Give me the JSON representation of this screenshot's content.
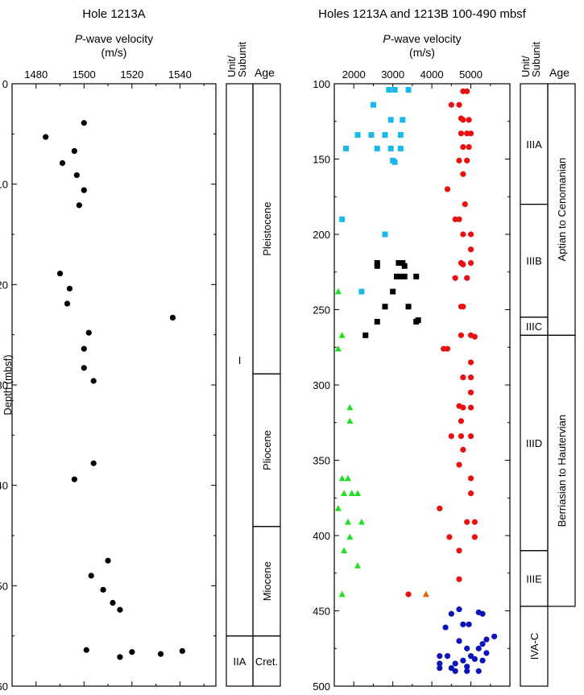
{
  "chart_data": [
    {
      "type": "scatter",
      "title": "Hole 1213A",
      "xlabel_italic": "P",
      "xlabel_rest": "-wave velocity",
      "xunits": "(m/s)",
      "ylabel": "Depth (mbsf)",
      "xlim": [
        1470,
        1555
      ],
      "ylim": [
        0,
        60
      ],
      "xticks": [
        1480,
        1500,
        1520,
        1540
      ],
      "yticks": [
        0,
        10,
        20,
        30,
        40,
        50,
        60
      ],
      "series": [
        {
          "marker": "circle",
          "color": "#000000",
          "points": [
            [
              1500,
              3.9
            ],
            [
              1484,
              5.3
            ],
            [
              1491,
              7.9
            ],
            [
              1496,
              6.7
            ],
            [
              1497,
              9.1
            ],
            [
              1500,
              10.6
            ],
            [
              1498,
              12.1
            ],
            [
              1490,
              18.9
            ],
            [
              1494,
              20.4
            ],
            [
              1493,
              21.9
            ],
            [
              1537,
              23.3
            ],
            [
              1502,
              24.8
            ],
            [
              1500,
              26.4
            ],
            [
              1500,
              28.3
            ],
            [
              1504,
              29.6
            ],
            [
              1504,
              37.8
            ],
            [
              1496,
              39.4
            ],
            [
              1510,
              47.5
            ],
            [
              1503,
              49.0
            ],
            [
              1508,
              50.4
            ],
            [
              1512,
              51.7
            ],
            [
              1515,
              52.4
            ],
            [
              1501,
              56.4
            ],
            [
              1520,
              56.6
            ],
            [
              1532,
              56.8
            ],
            [
              1541,
              56.5
            ],
            [
              1515,
              57.1
            ]
          ]
        }
      ]
    },
    {
      "type": "scatter",
      "title": "Holes 1213A and 1213B 100-490 mbsf",
      "xlabel_italic": "P",
      "xlabel_rest": "-wave velocity",
      "xunits": "(m/s)",
      "xlim": [
        1500,
        6000
      ],
      "ylim": [
        100,
        500
      ],
      "xticks": [
        2000,
        3000,
        4000,
        5000
      ],
      "yticks": [
        100,
        150,
        200,
        250,
        300,
        350,
        400,
        450,
        500
      ],
      "series": [
        {
          "marker": "square",
          "color": "#1ab8e8",
          "points": [
            [
              2900,
              104
            ],
            [
              3050,
              104
            ],
            [
              3400,
              104
            ],
            [
              2500,
              114
            ],
            [
              2100,
              134
            ],
            [
              2450,
              134
            ],
            [
              2800,
              134
            ],
            [
              3200,
              134
            ],
            [
              2950,
              124
            ],
            [
              3250,
              124
            ],
            [
              1800,
              143
            ],
            [
              2600,
              143
            ],
            [
              2950,
              143
            ],
            [
              3200,
              143
            ],
            [
              3000,
              151
            ],
            [
              3050,
              152
            ],
            [
              1700,
              190
            ],
            [
              2800,
              200
            ],
            [
              2200,
              238
            ]
          ]
        },
        {
          "marker": "square",
          "color": "#000000",
          "points": [
            [
              2600,
              219
            ],
            [
              2600,
              221
            ],
            [
              3150,
              219
            ],
            [
              3300,
              221
            ],
            [
              3250,
              219
            ],
            [
              3200,
              228
            ],
            [
              3100,
              228
            ],
            [
              3300,
              228
            ],
            [
              3600,
              228
            ],
            [
              3000,
              238
            ],
            [
              2800,
              248
            ],
            [
              3400,
              248
            ],
            [
              2600,
              258
            ],
            [
              3650,
              257
            ],
            [
              3600,
              258
            ],
            [
              2300,
              267
            ]
          ]
        },
        {
          "marker": "triangle",
          "color": "#22dd22",
          "points": [
            [
              1600,
              238
            ],
            [
              1700,
              267
            ],
            [
              1600,
              276
            ],
            [
              1900,
              315
            ],
            [
              1900,
              324
            ],
            [
              1700,
              362
            ],
            [
              1850,
              362
            ],
            [
              1950,
              372
            ],
            [
              1750,
              372
            ],
            [
              2100,
              372
            ],
            [
              1600,
              382
            ],
            [
              1850,
              391
            ],
            [
              2200,
              391
            ],
            [
              1900,
              401
            ],
            [
              1750,
              410
            ],
            [
              2100,
              420
            ],
            [
              1700,
              439
            ]
          ]
        },
        {
          "marker": "circle",
          "color": "#e81010",
          "points": [
            [
              4800,
              105
            ],
            [
              4900,
              105
            ],
            [
              4500,
              114
            ],
            [
              4700,
              114
            ],
            [
              4750,
              123
            ],
            [
              4800,
              124
            ],
            [
              4950,
              124
            ],
            [
              4750,
              133
            ],
            [
              4900,
              133
            ],
            [
              5000,
              133
            ],
            [
              4800,
              142
            ],
            [
              4950,
              142
            ],
            [
              4700,
              151
            ],
            [
              4900,
              151
            ],
            [
              4800,
              160
            ],
            [
              4400,
              170
            ],
            [
              4850,
              180
            ],
            [
              4600,
              190
            ],
            [
              4700,
              190
            ],
            [
              4800,
              200
            ],
            [
              5000,
              200
            ],
            [
              5000,
              210
            ],
            [
              4750,
              219
            ],
            [
              4800,
              220
            ],
            [
              5000,
              219
            ],
            [
              4600,
              229
            ],
            [
              4900,
              229
            ],
            [
              4750,
              248
            ],
            [
              4800,
              248
            ],
            [
              4750,
              267
            ],
            [
              5000,
              267
            ],
            [
              5100,
              268
            ],
            [
              4300,
              276
            ],
            [
              4400,
              276
            ],
            [
              5000,
              285
            ],
            [
              4800,
              295
            ],
            [
              5000,
              295
            ],
            [
              5000,
              305
            ],
            [
              4700,
              314
            ],
            [
              4800,
              315
            ],
            [
              5000,
              315
            ],
            [
              4750,
              324
            ],
            [
              4500,
              334
            ],
            [
              4750,
              334
            ],
            [
              5000,
              334
            ],
            [
              4800,
              343
            ],
            [
              4700,
              353
            ],
            [
              5000,
              362
            ],
            [
              5000,
              372
            ],
            [
              4200,
              382
            ],
            [
              4450,
              401
            ],
            [
              4900,
              391
            ],
            [
              5100,
              391
            ],
            [
              5100,
              401
            ],
            [
              4700,
              410
            ],
            [
              4700,
              429
            ],
            [
              3400,
              439
            ]
          ]
        },
        {
          "marker": "triangle",
          "color": "#e86010",
          "points": [
            [
              3850,
              439
            ]
          ]
        },
        {
          "marker": "circle",
          "color": "#0a14b8",
          "points": [
            [
              4700,
              449
            ],
            [
              4500,
              452
            ],
            [
              5200,
              451
            ],
            [
              5300,
              452
            ],
            [
              4350,
              461
            ],
            [
              4800,
              459
            ],
            [
              4950,
              459
            ],
            [
              5600,
              467
            ],
            [
              5400,
              469
            ],
            [
              4700,
              470
            ],
            [
              5300,
              472
            ],
            [
              4900,
              475
            ],
            [
              5200,
              475
            ],
            [
              5400,
              478
            ],
            [
              5000,
              480
            ],
            [
              4200,
              480
            ],
            [
              4400,
              480
            ],
            [
              5100,
              482
            ],
            [
              4800,
              483
            ],
            [
              5300,
              483
            ],
            [
              4200,
              485
            ],
            [
              4600,
              485
            ],
            [
              4900,
              487
            ],
            [
              4200,
              488
            ],
            [
              4500,
              488
            ],
            [
              4600,
              490
            ],
            [
              4900,
              490
            ],
            [
              5200,
              490
            ]
          ]
        }
      ]
    }
  ],
  "strat_left": {
    "header_unit": [
      "Unit/",
      "Subunit"
    ],
    "header_age": "Age",
    "units": [
      {
        "label": "I",
        "top": 0,
        "bottom": 55
      },
      {
        "label": "IIA",
        "top": 55,
        "bottom": 60
      }
    ],
    "ages": [
      {
        "label": "Pleistocene",
        "top": 0,
        "bottom": 28.9,
        "rotate": true
      },
      {
        "label": "Pliocene",
        "top": 28.9,
        "bottom": 44.1,
        "rotate": true
      },
      {
        "label": "Miocene",
        "top": 44.1,
        "bottom": 55,
        "rotate": true
      },
      {
        "label": "Cret.",
        "top": 55,
        "bottom": 60,
        "rotate": false
      }
    ]
  },
  "strat_right": {
    "header_unit": [
      "Unit/",
      "Subunit"
    ],
    "header_age": "Age",
    "units": [
      {
        "label": "IIIA",
        "top": 100,
        "bottom": 180
      },
      {
        "label": "IIIB",
        "top": 180,
        "bottom": 255
      },
      {
        "label": "IIIC",
        "top": 255,
        "bottom": 267
      },
      {
        "label": "IIID",
        "top": 267,
        "bottom": 410
      },
      {
        "label": "IIIE",
        "top": 410,
        "bottom": 447
      },
      {
        "label": "IVA-C",
        "top": 447,
        "bottom": 500
      }
    ],
    "ages": [
      {
        "label": "Aptian to Cenomanian",
        "top": 100,
        "bottom": 267,
        "rotate": true
      },
      {
        "label": "Berriasian to Hautervian",
        "top": 267,
        "bottom": 447,
        "rotate": true
      }
    ]
  }
}
